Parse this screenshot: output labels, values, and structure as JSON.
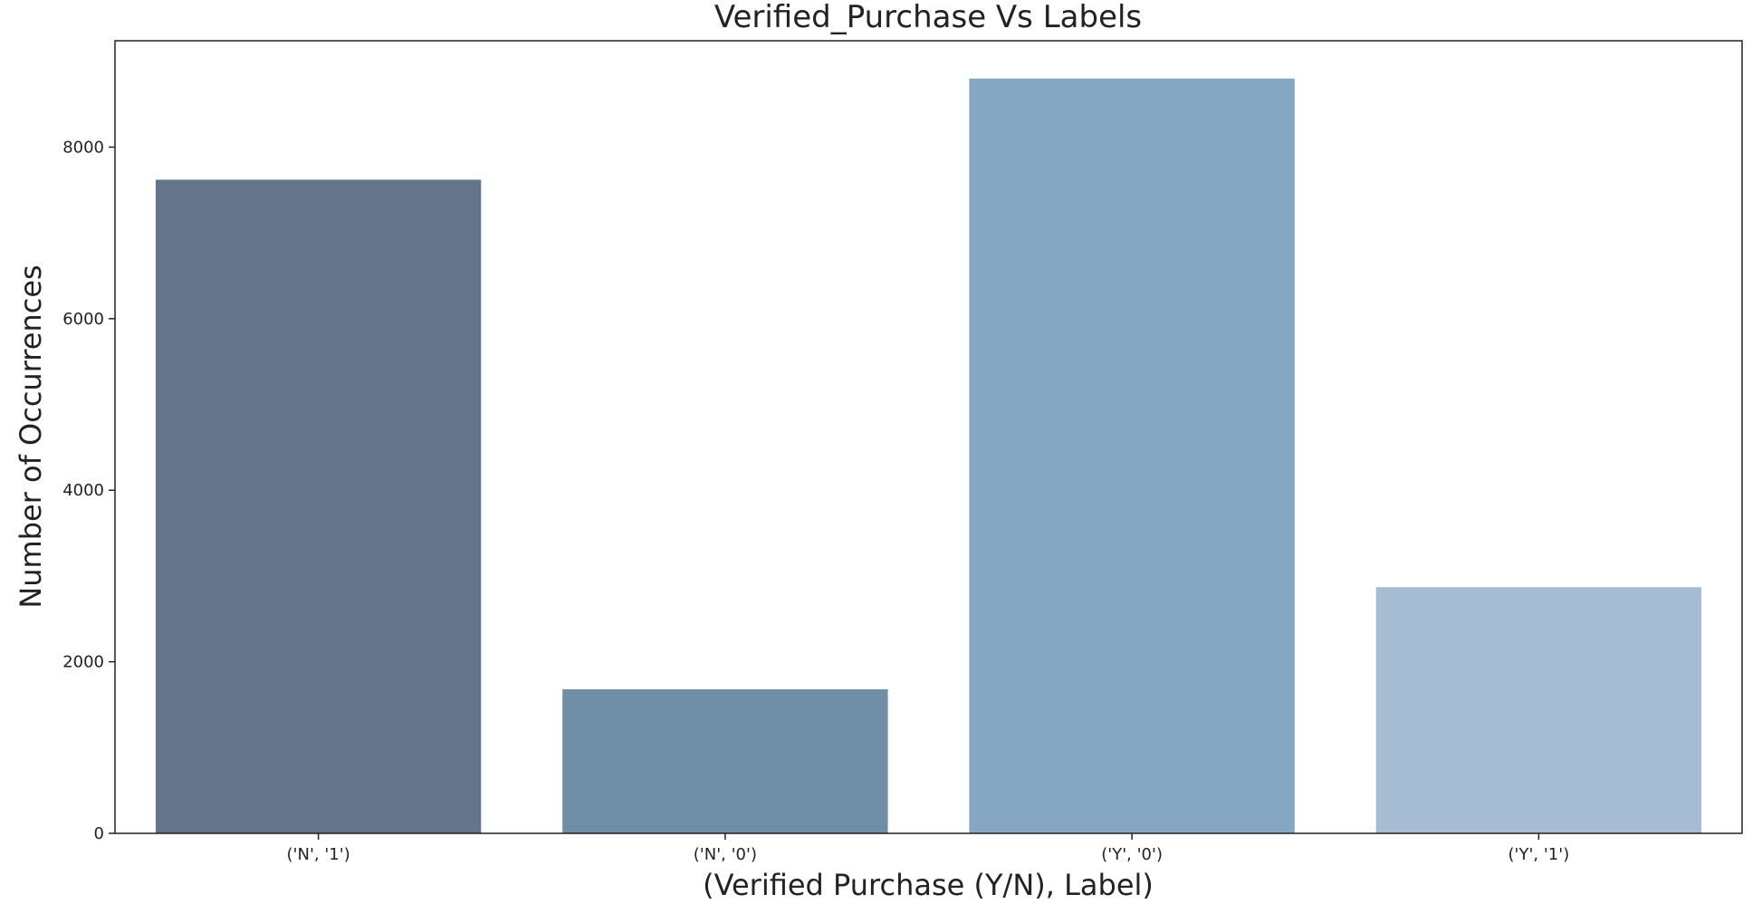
{
  "chart_data": {
    "type": "bar",
    "title": "Verified_Purchase Vs Labels",
    "xlabel": "(Verified Purchase (Y/N), Label)",
    "ylabel": "Number of Occurrences",
    "categories": [
      "('N', '1')",
      "('N', '0')",
      "('Y', '0')",
      "('Y', '1')"
    ],
    "values": [
      7620,
      1680,
      8800,
      2870
    ],
    "ylim": [
      0,
      9240
    ],
    "yticks": [
      0,
      2000,
      4000,
      6000,
      8000
    ],
    "colors": [
      "#64748a",
      "#718ea7",
      "#85a7c4",
      "#a7bdd3"
    ],
    "grid": false,
    "legend": "none"
  }
}
